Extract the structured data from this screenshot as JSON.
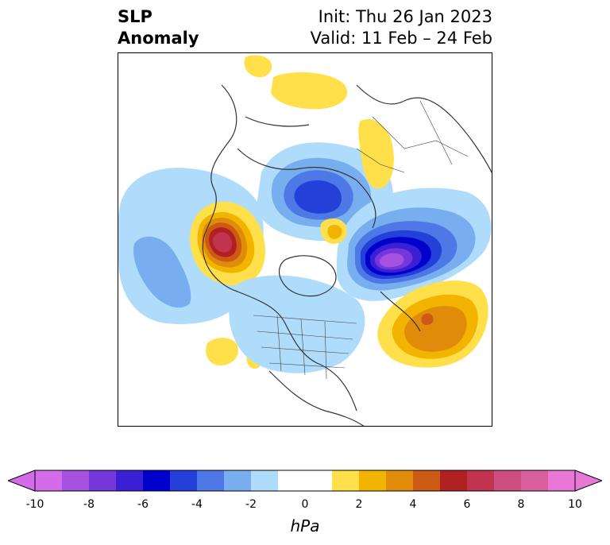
{
  "header": {
    "title_line1": "SLP",
    "title_line2": "Anomaly",
    "init": "Init: Thu 26 Jan 2023",
    "valid": "Valid: 11 Feb – 24 Feb"
  },
  "colorbar": {
    "units": "hPa",
    "ticks": [
      "-10",
      "-8",
      "-6",
      "-4",
      "-2",
      "0",
      "2",
      "4",
      "6",
      "8",
      "10"
    ],
    "range": [
      -10,
      10
    ],
    "extend": "both",
    "colors": [
      "#d46be8",
      "#a552e0",
      "#7437dc",
      "#3b1fd4",
      "#0000cc",
      "#2340d8",
      "#4d78e6",
      "#78aef0",
      "#aedcfa",
      "#ffffff",
      "#ffffff",
      "#ffe04a",
      "#f2b400",
      "#e08b0a",
      "#cc5a14",
      "#b02222",
      "#c2334f",
      "#cc4d80",
      "#d9609f",
      "#e877d6"
    ]
  },
  "map": {
    "projection": "north-polar-stereographic",
    "field": "sea-level-pressure-anomaly"
  }
}
